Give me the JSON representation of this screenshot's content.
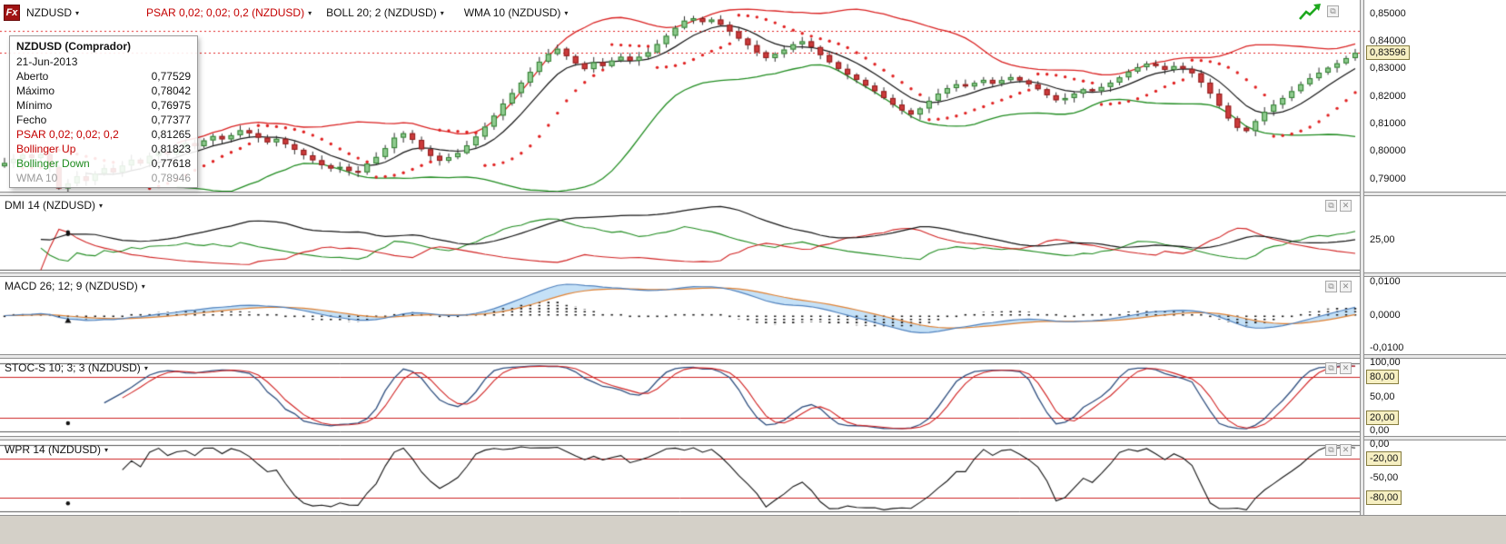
{
  "colors": {
    "up": "#2e7d2e",
    "up_fill": "#8fcb8f",
    "down": "#8f1d1d",
    "down_fill": "#cc3b3b",
    "boll_up": "#d92020",
    "boll_dn": "#1f8b1f",
    "wma": "#141414",
    "psar": "#e02020",
    "dmi_plus": "#1f8b1f",
    "dmi_minus": "#d02020",
    "adx": "#141414",
    "macd": "#4f81bd",
    "signal": "#e08030",
    "macd_fill": "rgba(150,200,240,0.55)",
    "stoc_k": "#2f4f7f",
    "stoc_d": "#d02020",
    "wpr": "#141414",
    "level": "#cc2222",
    "badge_bg": "#f6efc2"
  },
  "icons": {
    "caret": "▾",
    "restore": "⧉",
    "close": "✕",
    "popout": "⧉"
  },
  "toolbar": {
    "fx": "Fx",
    "symbol": "NZDUSD",
    "indicators": [
      {
        "label": "PSAR 0,02; 0,02; 0,2 (NZDUSD)",
        "red": true
      },
      {
        "label": "BOLL 20; 2 (NZDUSD)"
      },
      {
        "label": "WMA 10 (NZDUSD)"
      }
    ]
  },
  "tooltip": {
    "title": "NZDUSD (Comprador)",
    "date": "21-Jun-2013",
    "rows": [
      {
        "label": "Aberto",
        "value": "0,77529"
      },
      {
        "label": "Máximo",
        "value": "0,78042"
      },
      {
        "label": "Mínimo",
        "value": "0,76975"
      },
      {
        "label": "Fecho",
        "value": "0,77377"
      },
      {
        "label": "PSAR 0,02; 0,02; 0,2",
        "value": "0,81265",
        "color": "red"
      },
      {
        "label": "Bollinger Up",
        "value": "0,81823",
        "color": "red"
      },
      {
        "label": "Bollinger Down",
        "value": "0,77618",
        "color": "green"
      },
      {
        "label": "WMA 10",
        "value": "0,78946",
        "color": "gray"
      }
    ]
  },
  "main_chart": {
    "axis_labels": [
      "0,85000",
      "0,84000",
      "0,83000",
      "0,82000",
      "0,81000",
      "0,80000",
      "0,79000"
    ],
    "price_badge": "0,83596"
  },
  "panels": [
    {
      "title": "DMI 14 (NZDUSD)",
      "axis": [
        {
          "text": "25,00"
        }
      ]
    },
    {
      "title": "MACD 26; 12; 9 (NZDUSD)",
      "axis": [
        {
          "text": "0,0100"
        },
        {
          "text": "0,0000"
        },
        {
          "text": "-0,0100"
        }
      ]
    },
    {
      "title": "STOC-S 10; 3; 3 (NZDUSD)",
      "axis": [
        {
          "text": "100,00"
        },
        {
          "text": "80,00",
          "boxed": true
        },
        {
          "text": "50,00"
        },
        {
          "text": "20,00",
          "boxed": true
        },
        {
          "text": "0,00"
        }
      ]
    },
    {
      "title": "WPR 14 (NZDUSD)",
      "axis": [
        {
          "text": "0,00"
        },
        {
          "text": "-20,00",
          "boxed": true
        },
        {
          "text": "-50,00"
        },
        {
          "text": "-80,00",
          "boxed": true
        }
      ]
    }
  ],
  "chart_data": {
    "type": "candlestick",
    "symbol": "NZDUSD",
    "price_axis": [
      0.85,
      0.84,
      0.83,
      0.82,
      0.81,
      0.8,
      0.79
    ],
    "last_price": 0.83596,
    "dotted_level": 0.844,
    "settings": {
      "psar": [
        0.02,
        0.02,
        0.2
      ],
      "boll": [
        20,
        2
      ],
      "wma": 10
    },
    "panels": [
      {
        "name": "DMI",
        "period": 14,
        "axis_ticks": [
          25
        ],
        "range": [
          -2,
          62
        ]
      },
      {
        "name": "MACD",
        "params": [
          26,
          12,
          9
        ],
        "axis_ticks": [
          0.01,
          0,
          -0.01
        ],
        "range": [
          -0.0115,
          0.0115
        ]
      },
      {
        "name": "STOC-S",
        "params": [
          10,
          3,
          3
        ],
        "axis_ticks": [
          100,
          80,
          50,
          20,
          0
        ],
        "levels": [
          80,
          20
        ],
        "range": [
          0,
          100
        ]
      },
      {
        "name": "WPR",
        "period": 14,
        "axis_ticks": [
          0,
          -20,
          -50,
          -80
        ],
        "levels": [
          -20,
          -80
        ],
        "range": [
          -100,
          0
        ]
      }
    ],
    "closes": [
      0.796,
      0.7975,
      0.799,
      0.7978,
      0.7992,
      0.7945,
      0.7868,
      0.7886,
      0.7912,
      0.7895,
      0.7921,
      0.7941,
      0.7926,
      0.7951,
      0.7972,
      0.7958,
      0.7986,
      0.8001,
      0.7991,
      0.8012,
      0.8032,
      0.8021,
      0.8042,
      0.8058,
      0.8046,
      0.8061,
      0.8079,
      0.8068,
      0.8052,
      0.8035,
      0.8048,
      0.8028,
      0.8008,
      0.7988,
      0.797,
      0.7952,
      0.794,
      0.7946,
      0.7931,
      0.7926,
      0.7958,
      0.7982,
      0.8014,
      0.8052,
      0.8068,
      0.8044,
      0.801,
      0.7986,
      0.7968,
      0.7981,
      0.7996,
      0.8024,
      0.8056,
      0.8092,
      0.8132,
      0.8176,
      0.8214,
      0.8252,
      0.8291,
      0.8328,
      0.8356,
      0.8375,
      0.8348,
      0.8322,
      0.8301,
      0.8326,
      0.8312,
      0.8332,
      0.8346,
      0.8331,
      0.8346,
      0.8362,
      0.8392,
      0.8422,
      0.8451,
      0.8477,
      0.8486,
      0.8472,
      0.8481,
      0.8462,
      0.8438,
      0.8412,
      0.8388,
      0.8362,
      0.8341,
      0.8356,
      0.8372,
      0.8391,
      0.8402,
      0.8381,
      0.8352,
      0.8326,
      0.8302,
      0.8281,
      0.8262,
      0.8241,
      0.8221,
      0.8196,
      0.8172,
      0.8151,
      0.8136,
      0.8158,
      0.8186,
      0.8212,
      0.8232,
      0.8246,
      0.8238,
      0.8251,
      0.8262,
      0.8248,
      0.8261,
      0.8272,
      0.826,
      0.8246,
      0.8228,
      0.8206,
      0.8188,
      0.8196,
      0.8212,
      0.8228,
      0.8221,
      0.8236,
      0.8252,
      0.8271,
      0.8292,
      0.8308,
      0.8321,
      0.8312,
      0.8298,
      0.8312,
      0.8302,
      0.8286,
      0.8252,
      0.8212,
      0.8168,
      0.8122,
      0.8088,
      0.8076,
      0.8112,
      0.8146,
      0.8172,
      0.8196,
      0.8221,
      0.8246,
      0.8268,
      0.8288,
      0.8306,
      0.8322,
      0.8341,
      0.836
    ]
  }
}
